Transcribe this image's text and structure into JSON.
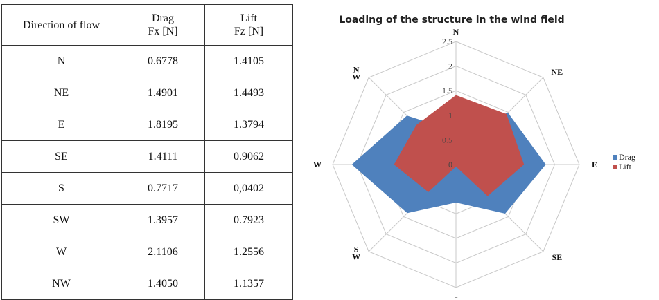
{
  "table": {
    "header": {
      "direction": "Direction of flow",
      "drag_line1": "Drag",
      "drag_line2": "Fx [N]",
      "lift_line1": "Lift",
      "lift_line2": "Fz [N]"
    },
    "rows": [
      {
        "direction": "N",
        "drag": "0.6778",
        "lift": "1.4105"
      },
      {
        "direction": "NE",
        "drag": "1.4901",
        "lift": "1.4493"
      },
      {
        "direction": "E",
        "drag": "1.8195",
        "lift": "1.3794"
      },
      {
        "direction": "SE",
        "drag": "1.4111",
        "lift": "0.9062"
      },
      {
        "direction": "S",
        "drag": "0.7717",
        "lift": "0,0402"
      },
      {
        "direction": "SW",
        "drag": "1.3957",
        "lift": "0.7923"
      },
      {
        "direction": "W",
        "drag": "2.1106",
        "lift": "1.2556"
      },
      {
        "direction": "NW",
        "drag": "1.4050",
        "lift": "1.1357"
      }
    ]
  },
  "chart_data": {
    "type": "radar",
    "title": "Loading of the structure in the wind field",
    "categories": [
      "N",
      "NE",
      "E",
      "SE",
      "S",
      "SW",
      "W",
      "NW"
    ],
    "category_labels": [
      [
        "N"
      ],
      [
        "NE"
      ],
      [
        "E"
      ],
      [
        "SE"
      ],
      [
        "S"
      ],
      [
        "S",
        "W"
      ],
      [
        "W"
      ],
      [
        "N",
        "W"
      ]
    ],
    "series": [
      {
        "name": "Drag",
        "color": "#4F81BD",
        "values": [
          0.6778,
          1.4901,
          1.8195,
          1.4111,
          0.7717,
          1.3957,
          2.1106,
          1.405
        ]
      },
      {
        "name": "Lift",
        "color": "#C0504D",
        "values": [
          1.4105,
          1.4493,
          1.3794,
          0.9062,
          0.0402,
          0.7923,
          1.2556,
          1.1357
        ]
      }
    ],
    "rlim": [
      0,
      2.5
    ],
    "ticks": [
      "0",
      "0.5",
      "1",
      "1.5",
      "2",
      "2.5"
    ],
    "tick_values": [
      0,
      0.5,
      1,
      1.5,
      2,
      2.5
    ],
    "grid": true,
    "legend_position": "right",
    "grid_color": "#C8C8C8"
  }
}
